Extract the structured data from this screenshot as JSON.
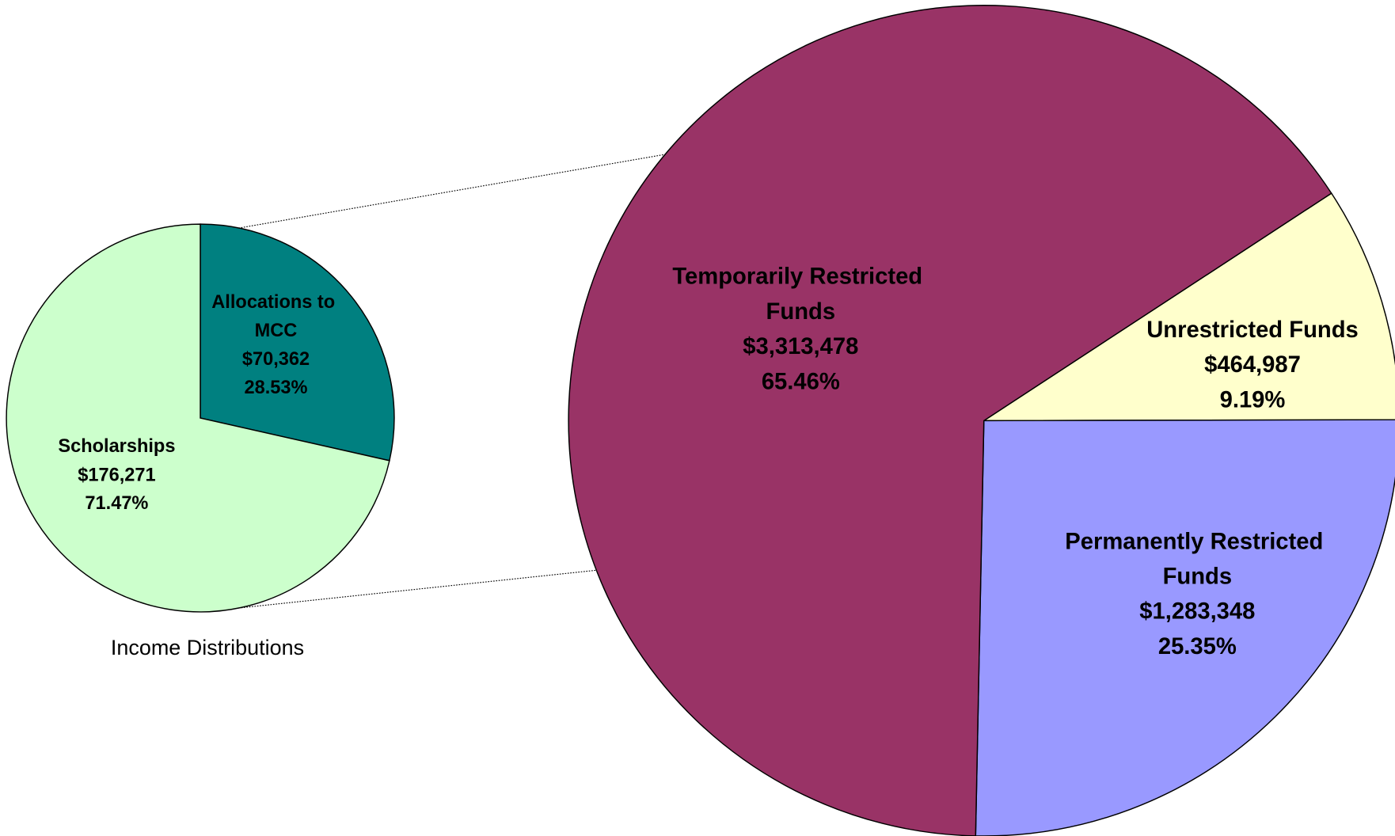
{
  "chart_data": [
    {
      "type": "pie",
      "title": "Income Distributions",
      "categories": [
        "Allocations to MCC",
        "Scholarships"
      ],
      "values": [
        70362,
        176271
      ],
      "value_labels": [
        "$70,362",
        "$176,271"
      ],
      "percent_labels": [
        "28.53%",
        "71.47%"
      ],
      "colors": [
        "#008080",
        "#ccffcc"
      ]
    },
    {
      "type": "pie",
      "categories": [
        "Unrestricted Funds",
        "Permanently Restricted Funds",
        "Temporarily Restricted Funds"
      ],
      "values": [
        464987,
        1283348,
        3313478
      ],
      "value_labels": [
        "$464,987",
        "$1,283,348",
        "$3,313,478"
      ],
      "percent_labels": [
        "9.19%",
        "25.35%",
        "65.46%"
      ],
      "colors": [
        "#ffffcc",
        "#9999ff",
        "#993366"
      ]
    }
  ]
}
